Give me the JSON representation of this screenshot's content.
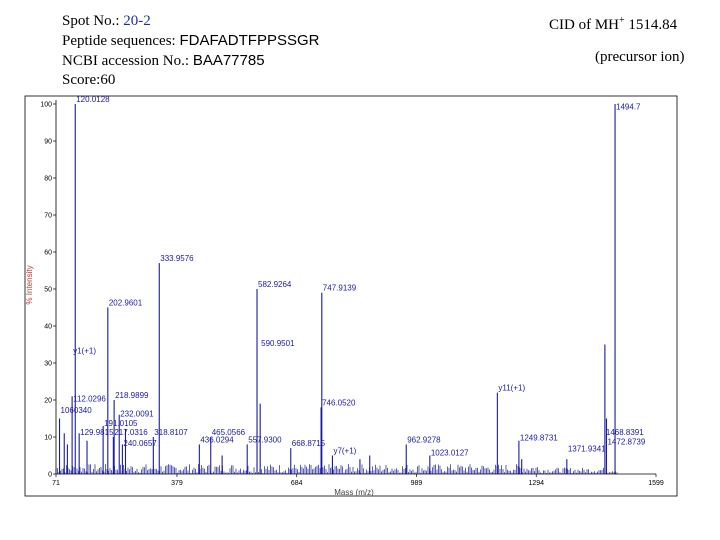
{
  "header": {
    "spot_label": "Spot No.:",
    "spot_value": "20-2",
    "peptide_label": "Peptide sequences:",
    "peptide_value": "FDAFADTFPPSSGR",
    "ncbi_label": "NCBI accession No.:",
    "ncbi_value": "BAA77785",
    "score": "Score:60",
    "cid_prefix": "CID of MH",
    "cid_sup": "+",
    "cid_mass": "1514.84",
    "precursor": "(precursor ion)"
  },
  "chart_data": {
    "type": "bar",
    "xlabel": "Mass (m/z)",
    "ylabel": "% Intensity",
    "xlim": [
      71,
      1599
    ],
    "ylim": [
      0,
      100
    ],
    "x_ticks": [
      71,
      379,
      684,
      989,
      1294,
      1599
    ],
    "y_ticks": [
      0,
      10,
      20,
      30,
      40,
      50,
      60,
      70,
      80,
      90,
      100
    ],
    "colors": {
      "peaks": "#1a1aa0",
      "axis": "#000000",
      "ylabel": "#c0392b"
    },
    "peaks": [
      {
        "x": 80,
        "y": 15
      },
      {
        "x": 92,
        "y": 11
      },
      {
        "x": 100,
        "y": 8
      },
      {
        "x": 112.0296,
        "y": 21
      },
      {
        "x": 120.0128,
        "y": 100
      },
      {
        "x": 129.9815,
        "y": 11
      },
      {
        "x": 150,
        "y": 9
      },
      {
        "x": 191.0105,
        "y": 13
      },
      {
        "x": 202.9601,
        "y": 45
      },
      {
        "x": 217.0316,
        "y": 10
      },
      {
        "x": 218.9899,
        "y": 20
      },
      {
        "x": 232.0091,
        "y": 16
      },
      {
        "x": 240.0657,
        "y": 8
      },
      {
        "x": 248,
        "y": 12
      },
      {
        "x": 318.8107,
        "y": 10
      },
      {
        "x": 333.9576,
        "y": 57
      },
      {
        "x": 436.0294,
        "y": 8
      },
      {
        "x": 465.0566,
        "y": 10
      },
      {
        "x": 494,
        "y": 5
      },
      {
        "x": 557.93,
        "y": 8
      },
      {
        "x": 582.9264,
        "y": 50
      },
      {
        "x": 590.9501,
        "y": 19
      },
      {
        "x": 668.8715,
        "y": 7
      },
      {
        "x": 746.052,
        "y": 18
      },
      {
        "x": 747.9139,
        "y": 49
      },
      {
        "x": 775,
        "y": 5
      },
      {
        "x": 845,
        "y": 4
      },
      {
        "x": 870,
        "y": 5
      },
      {
        "x": 962.9278,
        "y": 8
      },
      {
        "x": 1023.0127,
        "y": 5
      },
      {
        "x": 1195,
        "y": 22
      },
      {
        "x": 1249.8731,
        "y": 9
      },
      {
        "x": 1257,
        "y": 4
      },
      {
        "x": 1371.9341,
        "y": 4
      },
      {
        "x": 1468.8391,
        "y": 35
      },
      {
        "x": 1472.8739,
        "y": 15
      },
      {
        "x": 1494.7,
        "y": 100
      }
    ],
    "annotations": [
      {
        "text": "120.0128",
        "x": 120.0128,
        "y": 100
      },
      {
        "text": "1494.7",
        "x": 1494.7,
        "y": 98
      },
      {
        "text": "333.9576",
        "x": 333.9576,
        "y": 57
      },
      {
        "text": "202.9601",
        "x": 202.9601,
        "y": 45
      },
      {
        "text": "582.9264",
        "x": 582.9264,
        "y": 50
      },
      {
        "text": "747.9139",
        "x": 747.9139,
        "y": 49
      },
      {
        "text": "590.9501",
        "x": 590.9501,
        "y": 34
      },
      {
        "text": "y1(+1)",
        "x": 112,
        "y": 32
      },
      {
        "text": "112.0296",
        "x": 112.0296,
        "y": 19
      },
      {
        "text": "218.9899",
        "x": 218.9899,
        "y": 20
      },
      {
        "text": "1060340",
        "x": 80,
        "y": 16
      },
      {
        "text": "232.0091",
        "x": 232.0091,
        "y": 15
      },
      {
        "text": "191.0105",
        "x": 191.0105,
        "y": 12.5
      },
      {
        "text": "129.9815",
        "x": 129.9815,
        "y": 10
      },
      {
        "text": "217.0316",
        "x": 217.0316,
        "y": 10
      },
      {
        "text": "318.8107",
        "x": 318.8107,
        "y": 10
      },
      {
        "text": "465.0566",
        "x": 465.0566,
        "y": 10
      },
      {
        "text": "436.0294",
        "x": 436.0294,
        "y": 8
      },
      {
        "text": "557.9300",
        "x": 557.93,
        "y": 8
      },
      {
        "text": "668.8715",
        "x": 668.8715,
        "y": 7
      },
      {
        "text": "240.0657",
        "x": 240.0657,
        "y": 7
      },
      {
        "text": "746.0520",
        "x": 746.052,
        "y": 18
      },
      {
        "text": "y7(+1)",
        "x": 775,
        "y": 5
      },
      {
        "text": "y11(+1)",
        "x": 1195,
        "y": 22
      },
      {
        "text": "962.9278",
        "x": 962.9278,
        "y": 8
      },
      {
        "text": "1023.0127",
        "x": 1023.0127,
        "y": 4.5
      },
      {
        "text": "1249.8731",
        "x": 1249.8731,
        "y": 8.5
      },
      {
        "text": "1371.9341",
        "x": 1371.9341,
        "y": 5.5
      },
      {
        "text": "1468.8391",
        "x": 1468.8391,
        "y": 10
      },
      {
        "text": "1472.8739",
        "x": 1472.8739,
        "y": 7.5
      }
    ]
  }
}
